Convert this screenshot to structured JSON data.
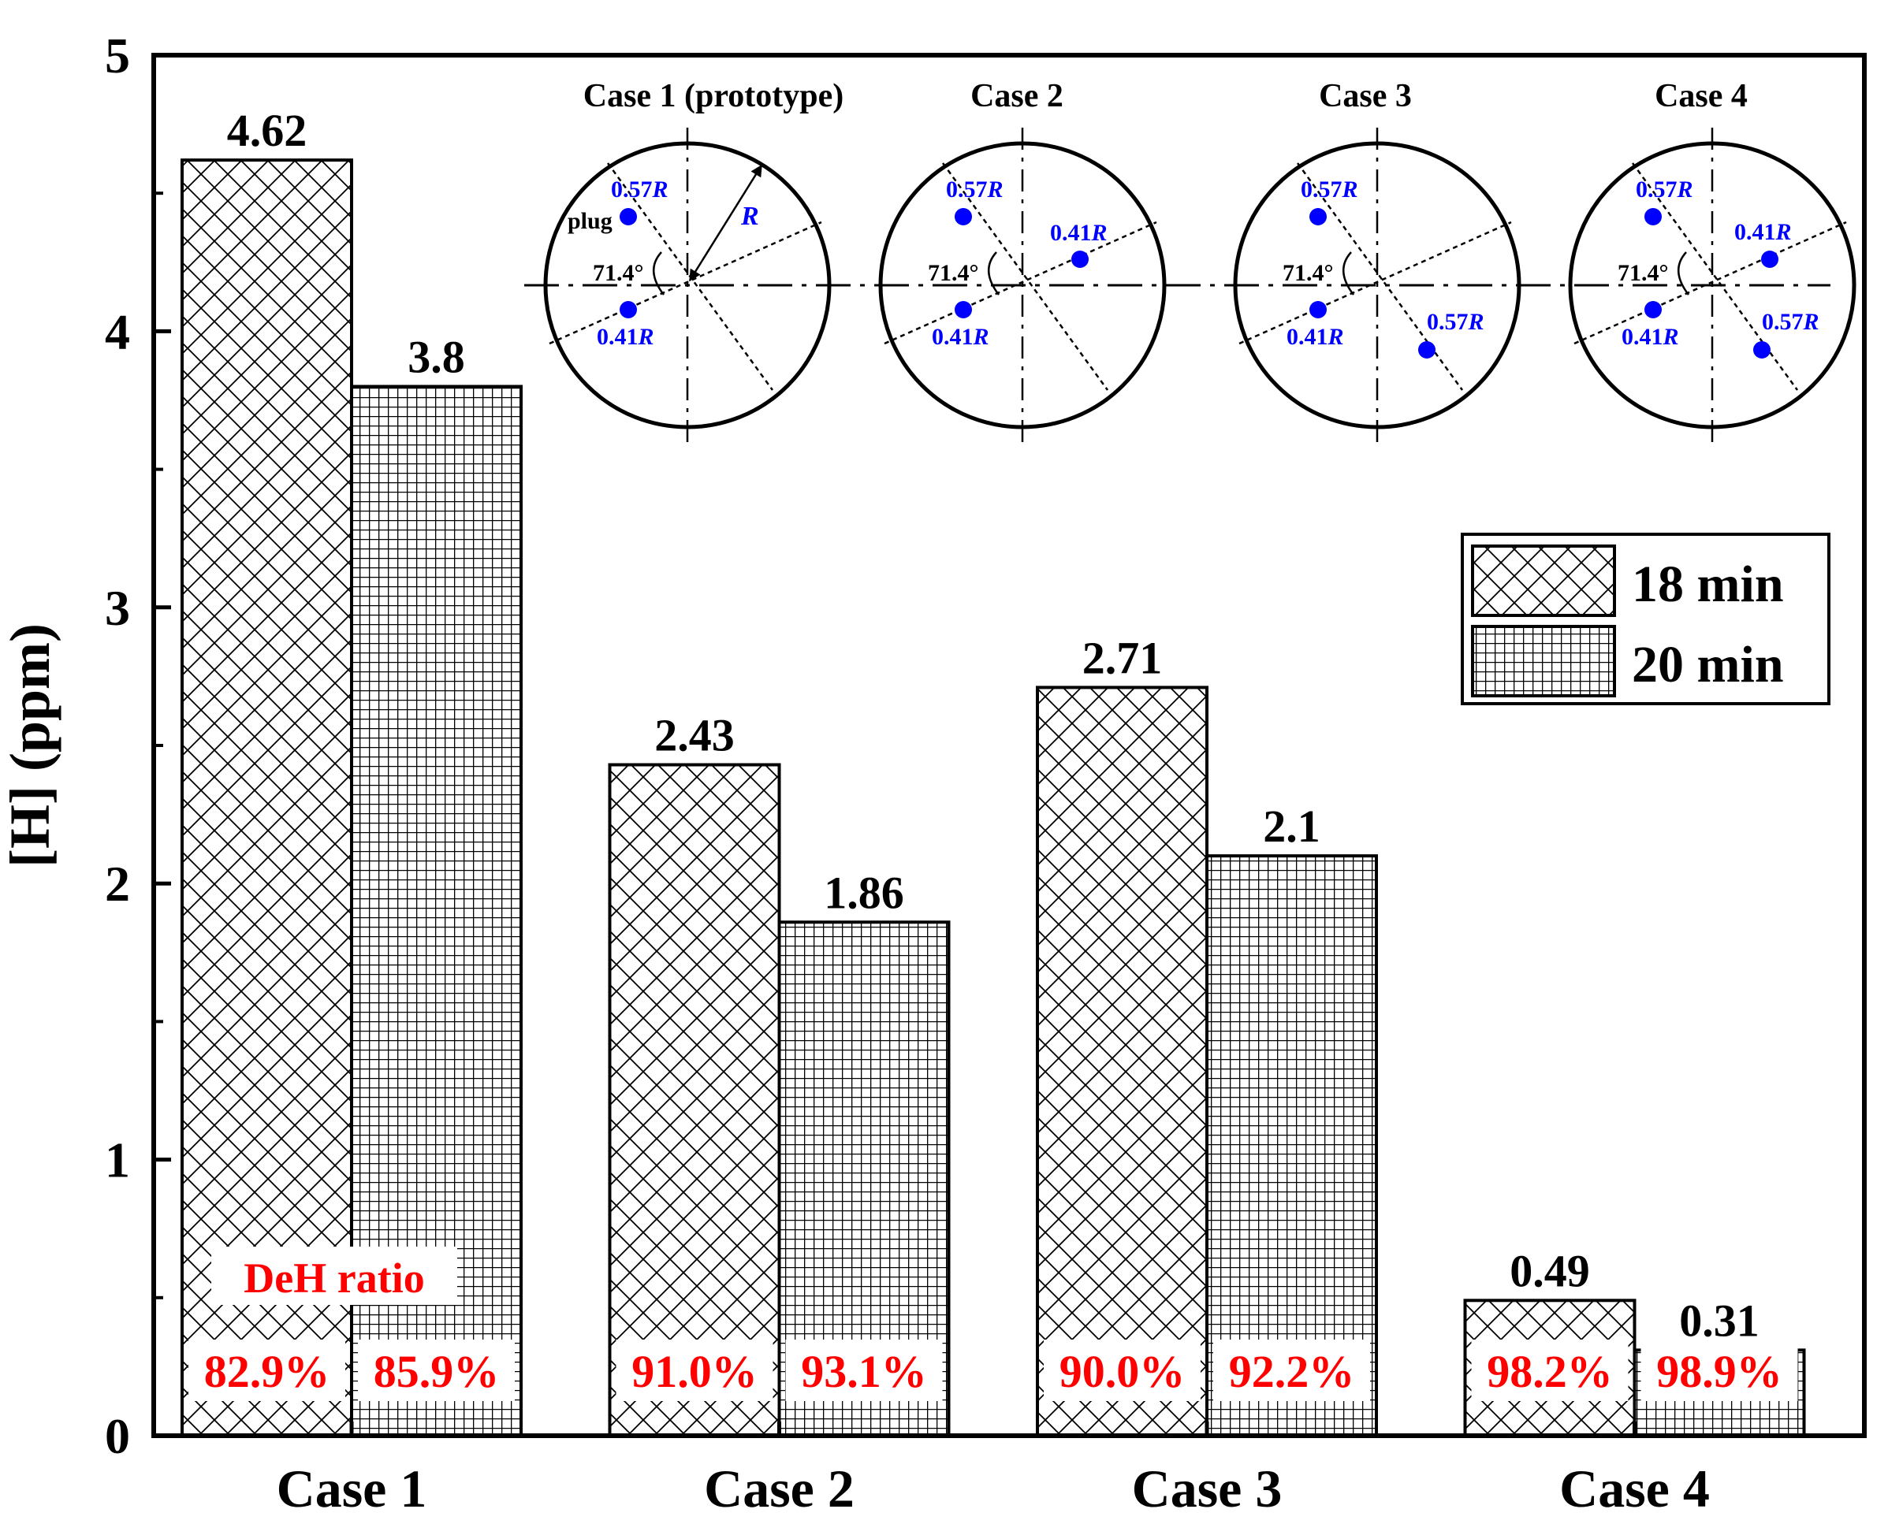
{
  "chart_data": {
    "type": "bar",
    "ylabel": "[H] (ppm)",
    "ylim": [
      0,
      5
    ],
    "yticks": [
      0,
      1,
      2,
      3,
      4,
      5
    ],
    "categories": [
      "Case 1",
      "Case 2",
      "Case 3",
      "Case 4"
    ],
    "series": [
      {
        "name": "18 min",
        "pattern": "crosshatch",
        "values": [
          4.62,
          2.43,
          2.71,
          0.49
        ],
        "value_labels": [
          "4.62",
          "2.43",
          "2.71",
          "0.49"
        ],
        "dech_ratio": [
          "82.9%",
          "91.0%",
          "90.0%",
          "98.2%"
        ]
      },
      {
        "name": "20 min",
        "pattern": "grid",
        "values": [
          3.8,
          1.86,
          2.1,
          0.31
        ],
        "value_labels": [
          "3.8",
          "1.86",
          "2.1",
          "0.31"
        ],
        "dech_ratio": [
          "85.9%",
          "93.1%",
          "92.2%",
          "98.9%"
        ]
      }
    ],
    "ratio_label": "DeH ratio",
    "legend_position": "right",
    "colors": {
      "ratio_text": "#ff0000",
      "plug": "#0000ff",
      "axis": "#000000"
    },
    "inset": {
      "diagrams": [
        {
          "title": "Case 1 (prototype)",
          "plugs": [
            {
              "label": "0.57R",
              "base": "0.57",
              "unit": "R",
              "side": "upper-left"
            },
            {
              "label": "0.41R",
              "base": "0.41",
              "unit": "R",
              "side": "lower-left"
            }
          ],
          "plug_text": "plug",
          "radius_text": "R",
          "angle_text": "71.4°"
        },
        {
          "title": "Case 2",
          "plugs": [
            {
              "label": "0.57R",
              "base": "0.57",
              "unit": "R",
              "side": "upper-left"
            },
            {
              "label": "0.41R",
              "base": "0.41",
              "unit": "R",
              "side": "lower-left"
            },
            {
              "label": "0.41R",
              "base": "0.41",
              "unit": "R",
              "side": "upper-right"
            }
          ],
          "angle_text": "71.4°"
        },
        {
          "title": "Case 3",
          "plugs": [
            {
              "label": "0.57R",
              "base": "0.57",
              "unit": "R",
              "side": "upper-left"
            },
            {
              "label": "0.41R",
              "base": "0.41",
              "unit": "R",
              "side": "lower-left"
            },
            {
              "label": "0.57R",
              "base": "0.57",
              "unit": "R",
              "side": "lower-right"
            }
          ],
          "angle_text": "71.4°"
        },
        {
          "title": "Case 4",
          "plugs": [
            {
              "label": "0.57R",
              "base": "0.57",
              "unit": "R",
              "side": "upper-left"
            },
            {
              "label": "0.41R",
              "base": "0.41",
              "unit": "R",
              "side": "lower-left"
            },
            {
              "label": "0.41R",
              "base": "0.41",
              "unit": "R",
              "side": "upper-right"
            },
            {
              "label": "0.57R",
              "base": "0.57",
              "unit": "R",
              "side": "lower-right"
            }
          ],
          "angle_text": "71.4°"
        }
      ]
    }
  }
}
